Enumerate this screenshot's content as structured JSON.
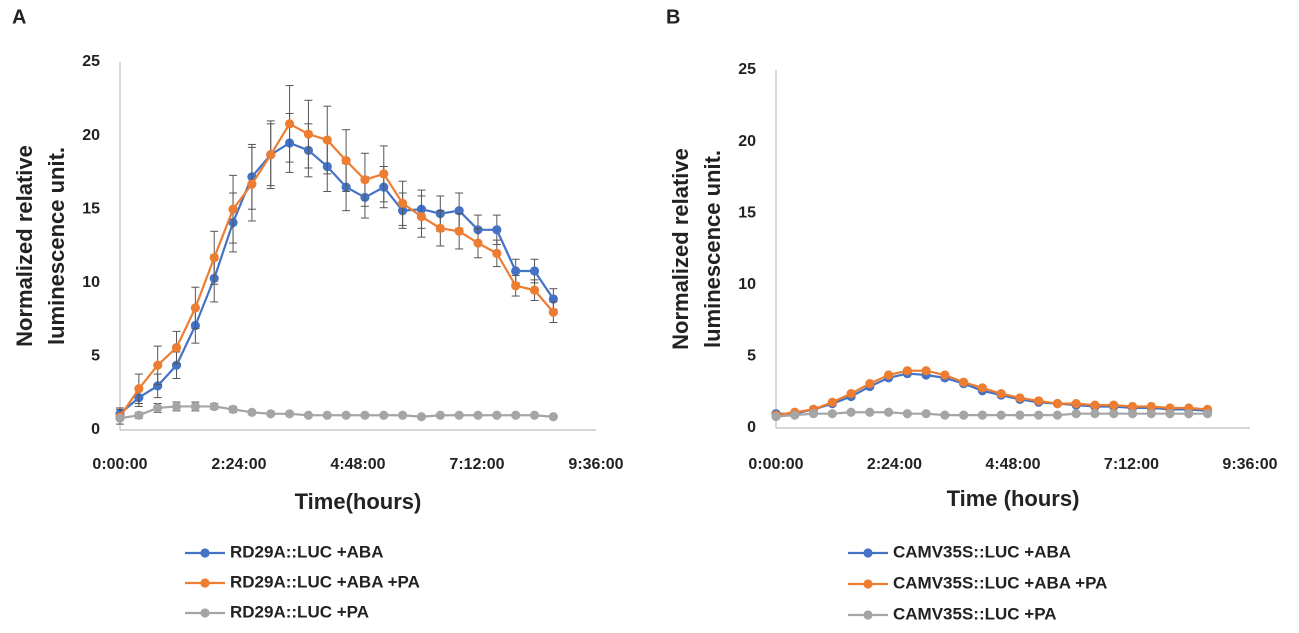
{
  "chart_data": [
    {
      "type": "line",
      "panel_label": "A",
      "xlabel": "Time(hours)",
      "ylabel": [
        "Normalized relative",
        "luminescence unit."
      ],
      "x": [
        0,
        0.38,
        0.76,
        1.14,
        1.52,
        1.9,
        2.28,
        2.66,
        3.04,
        3.42,
        3.8,
        4.18,
        4.56,
        4.94,
        5.32,
        5.7,
        6.08,
        6.46,
        6.84,
        7.22,
        7.6,
        7.98,
        8.36,
        8.74
      ],
      "xlim": [
        0,
        9.6
      ],
      "xticks": [
        {
          "value": 0,
          "label": "0:00:00"
        },
        {
          "value": 2.4,
          "label": "2:24:00"
        },
        {
          "value": 4.8,
          "label": "4:48:00"
        },
        {
          "value": 7.2,
          "label": "7:12:00"
        },
        {
          "value": 9.6,
          "label": "9:36:00"
        }
      ],
      "ylim": [
        0,
        25
      ],
      "yticks": [
        0,
        5,
        10,
        15,
        20,
        25
      ],
      "series": [
        {
          "name": "RD29A::LUC +ABA",
          "color": "#4472c4",
          "values": [
            1.1,
            2.2,
            3.0,
            4.4,
            7.1,
            10.3,
            14.1,
            17.2,
            18.7,
            19.5,
            19.0,
            17.9,
            16.5,
            15.8,
            16.5,
            14.9,
            15.0,
            14.7,
            14.9,
            13.6,
            13.6,
            10.8,
            10.8,
            8.9
          ],
          "errors": [
            0.4,
            0.6,
            0.8,
            0.9,
            1.2,
            1.6,
            2.0,
            2.2,
            2.1,
            2.0,
            1.8,
            1.7,
            1.6,
            1.4,
            1.4,
            1.2,
            1.3,
            1.2,
            1.2,
            1.0,
            1.0,
            0.8,
            0.8,
            0.7
          ]
        },
        {
          "name": "RD29A::LUC +ABA +PA",
          "color": "#ed7d31",
          "values": [
            0.9,
            2.8,
            4.4,
            5.6,
            8.3,
            11.7,
            15.0,
            16.7,
            18.7,
            20.8,
            20.1,
            19.7,
            18.3,
            17.0,
            17.4,
            15.4,
            14.5,
            13.7,
            13.5,
            12.7,
            12.0,
            9.8,
            9.5,
            8.0
          ],
          "errors": [
            0.5,
            1.0,
            1.3,
            1.1,
            1.4,
            1.8,
            2.3,
            2.5,
            2.3,
            2.6,
            2.3,
            2.3,
            2.1,
            1.8,
            1.9,
            1.5,
            1.4,
            1.2,
            1.2,
            1.0,
            0.9,
            0.7,
            0.7,
            0.7
          ]
        },
        {
          "name": "RD29A::LUC +PA",
          "color": "#a5a5a5",
          "values": [
            0.8,
            1.0,
            1.5,
            1.6,
            1.6,
            1.6,
            1.4,
            1.2,
            1.1,
            1.1,
            1.0,
            1.0,
            1.0,
            1.0,
            1.0,
            1.0,
            0.9,
            1.0,
            1.0,
            1.0,
            1.0,
            1.0,
            1.0,
            0.9
          ],
          "errors": [
            0.1,
            0.2,
            0.3,
            0.3,
            0.3,
            0.2,
            0.2,
            0.1,
            0.1,
            0.1,
            0.1,
            0.1,
            0.1,
            0.1,
            0.1,
            0.1,
            0.1,
            0.1,
            0.1,
            0.1,
            0.1,
            0.1,
            0.1,
            0.1
          ]
        }
      ]
    },
    {
      "type": "line",
      "panel_label": "B",
      "xlabel": "Time (hours)",
      "ylabel": [
        "Normalized relative",
        "luminescence unit."
      ],
      "x": [
        0,
        0.38,
        0.76,
        1.14,
        1.52,
        1.9,
        2.28,
        2.66,
        3.04,
        3.42,
        3.8,
        4.18,
        4.56,
        4.94,
        5.32,
        5.7,
        6.08,
        6.46,
        6.84,
        7.22,
        7.6,
        7.98,
        8.36,
        8.74
      ],
      "xlim": [
        0,
        9.6
      ],
      "xticks": [
        {
          "value": 0,
          "label": "0:00:00"
        },
        {
          "value": 2.4,
          "label": "2:24:00"
        },
        {
          "value": 4.8,
          "label": "4:48:00"
        },
        {
          "value": 7.2,
          "label": "7:12:00"
        },
        {
          "value": 9.6,
          "label": "9:36:00"
        }
      ],
      "ylim": [
        0,
        25
      ],
      "yticks": [
        0,
        5,
        10,
        15,
        20,
        25
      ],
      "series": [
        {
          "name": "CAMV35S::LUC +ABA",
          "color": "#4472c4",
          "values": [
            1.0,
            1.0,
            1.3,
            1.7,
            2.2,
            2.9,
            3.5,
            3.8,
            3.7,
            3.5,
            3.1,
            2.6,
            2.3,
            2.0,
            1.8,
            1.7,
            1.6,
            1.5,
            1.5,
            1.4,
            1.4,
            1.3,
            1.3,
            1.2
          ]
        },
        {
          "name": "CAMV35S::LUC +ABA +PA",
          "color": "#ed7d31",
          "values": [
            0.9,
            1.1,
            1.3,
            1.8,
            2.4,
            3.1,
            3.7,
            4.0,
            4.0,
            3.7,
            3.2,
            2.8,
            2.4,
            2.1,
            1.9,
            1.7,
            1.7,
            1.6,
            1.6,
            1.5,
            1.5,
            1.4,
            1.4,
            1.3
          ]
        },
        {
          "name": "CAMV35S::LUC  +PA",
          "color": "#a5a5a5",
          "values": [
            0.8,
            0.9,
            1.0,
            1.0,
            1.1,
            1.1,
            1.1,
            1.0,
            1.0,
            0.9,
            0.9,
            0.9,
            0.9,
            0.9,
            0.9,
            0.9,
            1.0,
            1.0,
            1.0,
            1.0,
            1.0,
            1.0,
            1.0,
            1.0
          ]
        }
      ]
    }
  ]
}
